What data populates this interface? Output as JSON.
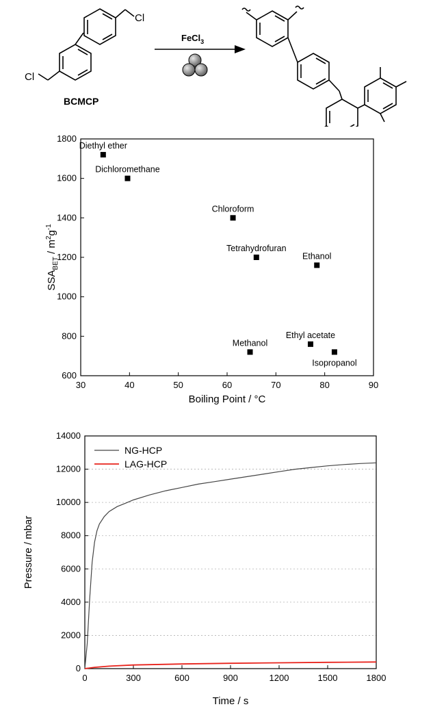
{
  "scheme": {
    "reactant_label": "BCMCP",
    "cl_left": "Cl",
    "cl_right": "Cl",
    "reagent": "FeCl",
    "reagent_sub": "3"
  },
  "colors": {
    "ng": "#444444",
    "lag": "#e8231c",
    "axis": "#000000",
    "grid": "#b0b0b0"
  },
  "chart_data": [
    {
      "type": "scatter",
      "xlabel": "Boiling Point / °C",
      "ylabel": "SSA",
      "ylabel_sub": "BET",
      "ylabel_unit": " / m",
      "ylabel_sup1": "2",
      "ylabel_g": "g",
      "ylabel_sup2": "-1",
      "xlim": [
        30,
        90
      ],
      "ylim": [
        600,
        1800
      ],
      "xticks": [
        30,
        40,
        50,
        60,
        70,
        80,
        90
      ],
      "yticks": [
        600,
        800,
        1000,
        1200,
        1400,
        1600,
        1800
      ],
      "points": [
        {
          "label": "Diethyl ether",
          "x": 34.6,
          "y": 1720,
          "label_pos": "above"
        },
        {
          "label": "Dichloromethane",
          "x": 39.6,
          "y": 1600,
          "label_pos": "above"
        },
        {
          "label": "Chloroform",
          "x": 61.2,
          "y": 1400,
          "label_pos": "above"
        },
        {
          "label": "Tetrahydrofuran",
          "x": 66,
          "y": 1200,
          "label_pos": "above"
        },
        {
          "label": "Ethanol",
          "x": 78.4,
          "y": 1160,
          "label_pos": "above"
        },
        {
          "label": "Methanol",
          "x": 64.7,
          "y": 720,
          "label_pos": "above"
        },
        {
          "label": "Ethyl acetate",
          "x": 77.1,
          "y": 760,
          "label_pos": "above"
        },
        {
          "label": "Isopropanol",
          "x": 82,
          "y": 720,
          "label_pos": "below"
        }
      ],
      "grid": false
    },
    {
      "type": "line",
      "xlabel": "Time / s",
      "ylabel": "Pressure / mbar",
      "xlim": [
        0,
        1800
      ],
      "ylim": [
        0,
        14000
      ],
      "xticks": [
        0,
        300,
        600,
        900,
        1200,
        1500,
        1800
      ],
      "yticks": [
        0,
        2000,
        4000,
        6000,
        8000,
        10000,
        12000,
        14000
      ],
      "grid": "horizontal dotted",
      "legend": "top-left",
      "series": [
        {
          "name": "NG-HCP",
          "x": [
            0,
            15,
            30,
            45,
            60,
            75,
            90,
            120,
            150,
            200,
            250,
            300,
            400,
            500,
            600,
            700,
            800,
            900,
            1000,
            1100,
            1200,
            1300,
            1400,
            1500,
            1600,
            1700,
            1800
          ],
          "y": [
            0,
            1500,
            4200,
            6400,
            7600,
            8300,
            8700,
            9150,
            9450,
            9750,
            9950,
            10150,
            10450,
            10700,
            10900,
            11100,
            11250,
            11400,
            11550,
            11700,
            11850,
            12000,
            12100,
            12200,
            12280,
            12340,
            12380
          ]
        },
        {
          "name": "LAG-HCP",
          "x": [
            0,
            60,
            150,
            300,
            600,
            900,
            1200,
            1500,
            1800
          ],
          "y": [
            0,
            80,
            150,
            220,
            280,
            320,
            350,
            380,
            400
          ]
        }
      ]
    }
  ]
}
